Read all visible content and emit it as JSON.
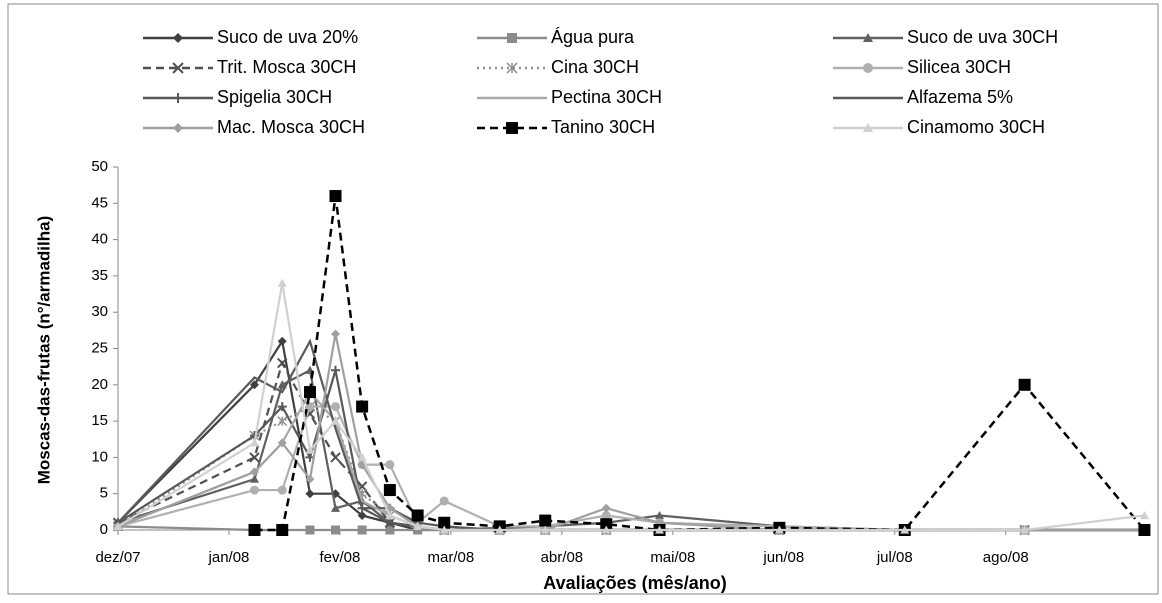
{
  "chart_data": {
    "type": "line",
    "xlabel": "Avaliações (mês/ano)",
    "ylabel": "Moscas-das-frutas (n°/armadilha)",
    "x": [
      0,
      1.23,
      1.48,
      1.73,
      1.96,
      2.2,
      2.45,
      2.7,
      2.94,
      3.44,
      3.85,
      4.4,
      4.88,
      5.96,
      7.09,
      8.17,
      9.25
    ],
    "xlim": [
      0,
      9.3
    ],
    "xticks": [
      {
        "value": 0,
        "label": "dez/07"
      },
      {
        "value": 1,
        "label": "jan/08"
      },
      {
        "value": 2,
        "label": "fev/08"
      },
      {
        "value": 3,
        "label": "mar/08"
      },
      {
        "value": 4,
        "label": "abr/08"
      },
      {
        "value": 5,
        "label": "mai/08"
      },
      {
        "value": 6,
        "label": "jun/08"
      },
      {
        "value": 7,
        "label": "jul/08"
      },
      {
        "value": 8,
        "label": "ago/08"
      }
    ],
    "ylim": [
      0,
      50
    ],
    "yticks": [
      0,
      5,
      10,
      15,
      20,
      25,
      30,
      35,
      40,
      45,
      50
    ],
    "grid": false,
    "legend": "top",
    "series": [
      {
        "name": "Suco de uva 20%",
        "color": "#404040",
        "dash": "solid",
        "marker": "diamond",
        "values": [
          1,
          20,
          26,
          5,
          5,
          2,
          1,
          0,
          0,
          0,
          0,
          0,
          0,
          0,
          0,
          0,
          0
        ]
      },
      {
        "name": "Água pura",
        "color": "#8c8c8c",
        "dash": "solid",
        "marker": "square",
        "values": [
          0.5,
          0,
          0,
          0,
          0,
          0,
          0,
          0,
          0,
          0,
          0,
          0,
          0,
          0,
          0,
          0,
          0
        ]
      },
      {
        "name": "Suco de uva 30CH",
        "color": "#606060",
        "dash": "solid",
        "marker": "triangle",
        "values": [
          1,
          7,
          20,
          22,
          3,
          4,
          1,
          0.5,
          0,
          0.3,
          0.5,
          1,
          2,
          0.5,
          0,
          0,
          0
        ]
      },
      {
        "name": "Trit. Mosca 30CH",
        "color": "#505050",
        "dash": "dashed",
        "marker": "x",
        "values": [
          1,
          10,
          23,
          16,
          10,
          6,
          1,
          0.5,
          0,
          0,
          0,
          0,
          0,
          0,
          0,
          0,
          0
        ]
      },
      {
        "name": "Cina 30CH",
        "color": "#909090",
        "dash": "dotted",
        "marker": "asterisk",
        "values": [
          0.5,
          13,
          15,
          17,
          15,
          5,
          2,
          0.5,
          0,
          0,
          0,
          0,
          0,
          0,
          0,
          0,
          0
        ]
      },
      {
        "name": "Silicea 30CH",
        "color": "#b0b0b0",
        "dash": "solid",
        "marker": "circle",
        "values": [
          0.5,
          5.5,
          5.5,
          17,
          17,
          9,
          9,
          1,
          4,
          0.5,
          0.5,
          2,
          1,
          0.5,
          0,
          0,
          0
        ]
      },
      {
        "name": "Spigelia 30CH",
        "color": "#585858",
        "dash": "solid",
        "marker": "plus",
        "values": [
          1,
          13,
          17,
          10,
          22,
          3,
          3,
          1,
          0.5,
          0,
          0,
          0,
          0,
          0,
          0,
          0,
          0
        ]
      },
      {
        "name": "Pectina 30CH",
        "color": "#a8a8a8",
        "dash": "solid",
        "marker": "none",
        "values": [
          0.5,
          8,
          12,
          19,
          15,
          4,
          2,
          0.5,
          0,
          0,
          0,
          0,
          0,
          0,
          0,
          0,
          0
        ]
      },
      {
        "name": "Alfazema 5%",
        "color": "#5a5a5a",
        "dash": "solid",
        "marker": "none",
        "values": [
          1,
          21,
          19,
          26,
          14,
          3,
          1,
          0.5,
          0,
          0,
          0,
          0,
          0,
          0,
          0,
          0,
          0
        ]
      },
      {
        "name": "Mac. Mosca 30CH",
        "color": "#a0a0a0",
        "dash": "solid",
        "marker": "diamond",
        "values": [
          0.5,
          8,
          12,
          7,
          27,
          9,
          3,
          0.5,
          0,
          0,
          0,
          3,
          1,
          0,
          0,
          0,
          0
        ]
      },
      {
        "name": "Tanino 30CH",
        "color": "#000000",
        "dash": "dashed",
        "marker": "square",
        "values": [
          null,
          0,
          0,
          19,
          46,
          17,
          5.5,
          2,
          1,
          0.5,
          1.3,
          0.8,
          0,
          0.3,
          0,
          20,
          0
        ]
      },
      {
        "name": "Cinamomo 30CH",
        "color": "#d0d0d0",
        "dash": "solid",
        "marker": "triangle",
        "values": [
          0.5,
          12,
          34,
          11,
          15,
          10,
          2,
          0.5,
          0,
          0,
          0,
          0,
          0,
          0,
          0,
          0,
          2
        ]
      }
    ]
  }
}
